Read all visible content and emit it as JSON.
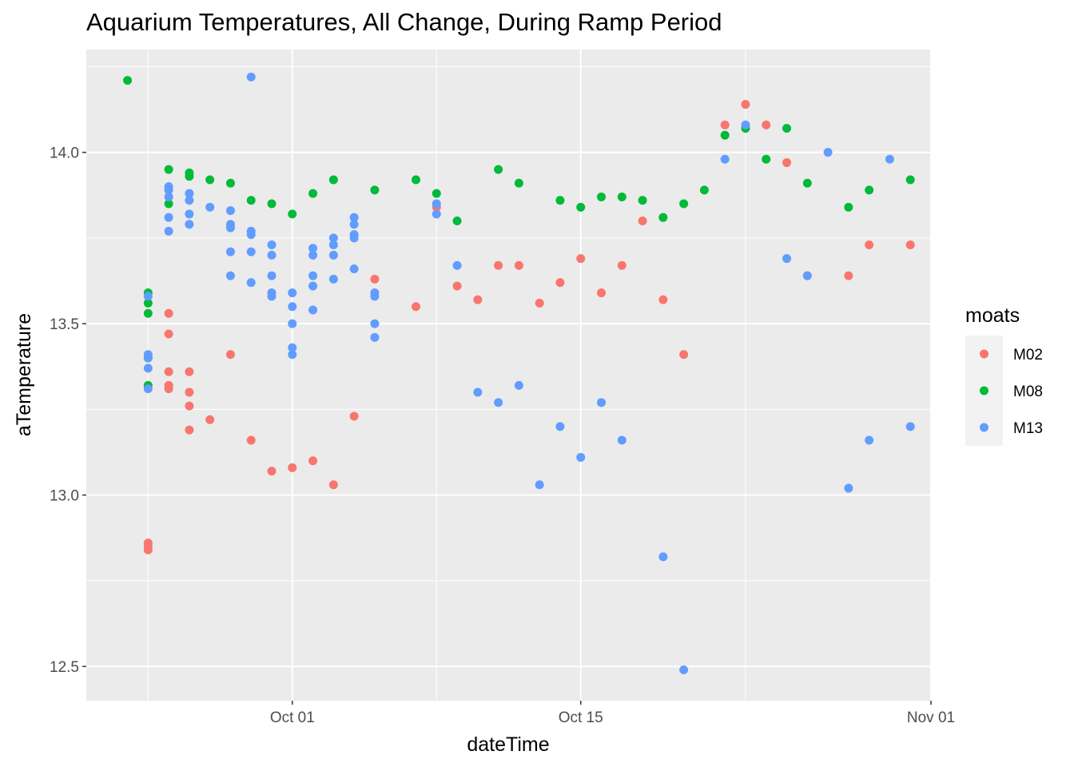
{
  "chart_data": {
    "type": "scatter",
    "title": "Aquarium Temperatures, All Change, During Ramp Period",
    "xlabel": "dateTime",
    "ylabel": "aTemperature",
    "x_axis": {
      "type": "date",
      "range": [
        "2019-09-21",
        "2019-11-01"
      ],
      "ticks": [
        {
          "date": "2019-10-01",
          "label": "Oct 01"
        },
        {
          "date": "2019-10-15",
          "label": "Oct 15"
        },
        {
          "date": "2019-11-01",
          "label": "Nov 01"
        }
      ],
      "minor_ticks": [
        "2019-09-24",
        "2019-10-08",
        "2019-10-23"
      ]
    },
    "y_axis": {
      "range": [
        12.4,
        14.3
      ],
      "ticks": [
        12.5,
        13.0,
        13.5,
        14.0
      ],
      "tick_labels": [
        "12.5",
        "13.0",
        "13.5",
        "14.0"
      ],
      "minor_ticks": [
        12.75,
        13.25,
        13.75,
        14.25
      ]
    },
    "grid": true,
    "legend": {
      "title": "moats",
      "position": "right"
    },
    "series": [
      {
        "name": "M02",
        "color": "#F8766D",
        "points": [
          [
            "2019-09-24",
            12.84
          ],
          [
            "2019-09-24",
            12.86
          ],
          [
            "2019-09-24",
            12.85
          ],
          [
            "2019-09-25",
            13.53
          ],
          [
            "2019-09-25",
            13.47
          ],
          [
            "2019-09-25",
            13.36
          ],
          [
            "2019-09-25",
            13.32
          ],
          [
            "2019-09-25",
            13.31
          ],
          [
            "2019-09-26",
            13.36
          ],
          [
            "2019-09-26",
            13.3
          ],
          [
            "2019-09-26",
            13.26
          ],
          [
            "2019-09-26",
            13.19
          ],
          [
            "2019-09-27",
            13.22
          ],
          [
            "2019-09-28",
            13.41
          ],
          [
            "2019-09-29",
            13.16
          ],
          [
            "2019-09-30",
            13.07
          ],
          [
            "2019-10-01",
            13.08
          ],
          [
            "2019-10-02",
            13.1
          ],
          [
            "2019-10-03",
            13.03
          ],
          [
            "2019-10-04",
            13.23
          ],
          [
            "2019-10-05",
            13.63
          ],
          [
            "2019-10-07",
            13.55
          ],
          [
            "2019-10-08",
            13.84
          ],
          [
            "2019-10-09",
            13.61
          ],
          [
            "2019-10-10",
            13.57
          ],
          [
            "2019-10-11",
            13.67
          ],
          [
            "2019-10-12",
            13.67
          ],
          [
            "2019-10-13",
            13.56
          ],
          [
            "2019-10-14",
            13.62
          ],
          [
            "2019-10-15",
            13.69
          ],
          [
            "2019-10-16",
            13.59
          ],
          [
            "2019-10-17",
            13.67
          ],
          [
            "2019-10-18",
            13.8
          ],
          [
            "2019-10-19",
            13.57
          ],
          [
            "2019-10-20",
            13.41
          ],
          [
            "2019-10-22",
            14.08
          ],
          [
            "2019-10-23",
            14.14
          ],
          [
            "2019-10-24",
            14.08
          ],
          [
            "2019-10-25",
            13.97
          ],
          [
            "2019-10-26",
            13.64
          ],
          [
            "2019-10-28",
            13.64
          ],
          [
            "2019-10-29",
            13.73
          ],
          [
            "2019-10-31",
            13.73
          ]
        ]
      },
      {
        "name": "M08",
        "color": "#00BA38",
        "points": [
          [
            "2019-09-23",
            14.21
          ],
          [
            "2019-09-24",
            13.59
          ],
          [
            "2019-09-24",
            13.56
          ],
          [
            "2019-09-24",
            13.53
          ],
          [
            "2019-09-24",
            13.4
          ],
          [
            "2019-09-24",
            13.32
          ],
          [
            "2019-09-25",
            13.95
          ],
          [
            "2019-09-25",
            13.85
          ],
          [
            "2019-09-26",
            13.94
          ],
          [
            "2019-09-26",
            13.93
          ],
          [
            "2019-09-27",
            13.92
          ],
          [
            "2019-09-28",
            13.91
          ],
          [
            "2019-09-29",
            13.86
          ],
          [
            "2019-09-30",
            13.85
          ],
          [
            "2019-10-01",
            13.82
          ],
          [
            "2019-10-02",
            13.88
          ],
          [
            "2019-10-03",
            13.92
          ],
          [
            "2019-10-05",
            13.89
          ],
          [
            "2019-10-07",
            13.92
          ],
          [
            "2019-10-08",
            13.88
          ],
          [
            "2019-10-09",
            13.8
          ],
          [
            "2019-10-11",
            13.95
          ],
          [
            "2019-10-12",
            13.91
          ],
          [
            "2019-10-14",
            13.86
          ],
          [
            "2019-10-15",
            13.84
          ],
          [
            "2019-10-16",
            13.87
          ],
          [
            "2019-10-17",
            13.87
          ],
          [
            "2019-10-18",
            13.86
          ],
          [
            "2019-10-19",
            13.81
          ],
          [
            "2019-10-20",
            13.85
          ],
          [
            "2019-10-21",
            13.89
          ],
          [
            "2019-10-22",
            14.05
          ],
          [
            "2019-10-23",
            14.07
          ],
          [
            "2019-10-24",
            13.98
          ],
          [
            "2019-10-25",
            14.07
          ],
          [
            "2019-10-26",
            13.91
          ],
          [
            "2019-10-28",
            13.84
          ],
          [
            "2019-10-29",
            13.89
          ],
          [
            "2019-10-31",
            13.92
          ]
        ]
      },
      {
        "name": "M13",
        "color": "#619CFF",
        "points": [
          [
            "2019-09-24",
            13.58
          ],
          [
            "2019-09-24",
            13.41
          ],
          [
            "2019-09-24",
            13.4
          ],
          [
            "2019-09-24",
            13.37
          ],
          [
            "2019-09-24",
            13.31
          ],
          [
            "2019-09-25",
            13.9
          ],
          [
            "2019-09-25",
            13.89
          ],
          [
            "2019-09-25",
            13.87
          ],
          [
            "2019-09-25",
            13.81
          ],
          [
            "2019-09-25",
            13.77
          ],
          [
            "2019-09-26",
            13.88
          ],
          [
            "2019-09-26",
            13.86
          ],
          [
            "2019-09-26",
            13.82
          ],
          [
            "2019-09-26",
            13.79
          ],
          [
            "2019-09-27",
            13.84
          ],
          [
            "2019-09-28",
            13.83
          ],
          [
            "2019-09-28",
            13.79
          ],
          [
            "2019-09-28",
            13.78
          ],
          [
            "2019-09-28",
            13.71
          ],
          [
            "2019-09-28",
            13.64
          ],
          [
            "2019-09-29",
            13.77
          ],
          [
            "2019-09-29",
            13.76
          ],
          [
            "2019-09-29",
            13.71
          ],
          [
            "2019-09-29",
            13.62
          ],
          [
            "2019-09-30",
            13.73
          ],
          [
            "2019-09-30",
            13.7
          ],
          [
            "2019-09-30",
            13.64
          ],
          [
            "2019-09-30",
            13.59
          ],
          [
            "2019-09-30",
            13.58
          ],
          [
            "2019-09-29",
            14.22
          ],
          [
            "2019-10-01",
            13.59
          ],
          [
            "2019-10-01",
            13.55
          ],
          [
            "2019-10-01",
            13.5
          ],
          [
            "2019-10-01",
            13.43
          ],
          [
            "2019-10-01",
            13.41
          ],
          [
            "2019-10-02",
            13.72
          ],
          [
            "2019-10-02",
            13.7
          ],
          [
            "2019-10-02",
            13.64
          ],
          [
            "2019-10-02",
            13.61
          ],
          [
            "2019-10-02",
            13.54
          ],
          [
            "2019-10-03",
            13.75
          ],
          [
            "2019-10-03",
            13.73
          ],
          [
            "2019-10-03",
            13.7
          ],
          [
            "2019-10-03",
            13.63
          ],
          [
            "2019-10-04",
            13.81
          ],
          [
            "2019-10-04",
            13.79
          ],
          [
            "2019-10-04",
            13.76
          ],
          [
            "2019-10-04",
            13.75
          ],
          [
            "2019-10-04",
            13.66
          ],
          [
            "2019-10-05",
            13.59
          ],
          [
            "2019-10-05",
            13.58
          ],
          [
            "2019-10-05",
            13.5
          ],
          [
            "2019-10-05",
            13.46
          ],
          [
            "2019-10-08",
            13.82
          ],
          [
            "2019-10-08",
            13.85
          ],
          [
            "2019-10-09",
            13.67
          ],
          [
            "2019-10-10",
            13.3
          ],
          [
            "2019-10-11",
            13.27
          ],
          [
            "2019-10-12",
            13.32
          ],
          [
            "2019-10-13",
            13.03
          ],
          [
            "2019-10-14",
            13.2
          ],
          [
            "2019-10-15",
            13.11
          ],
          [
            "2019-10-16",
            13.27
          ],
          [
            "2019-10-17",
            13.16
          ],
          [
            "2019-10-19",
            12.82
          ],
          [
            "2019-10-20",
            12.49
          ],
          [
            "2019-10-22",
            13.98
          ],
          [
            "2019-10-23",
            14.08
          ],
          [
            "2019-10-25",
            13.69
          ],
          [
            "2019-10-26",
            13.64
          ],
          [
            "2019-10-27",
            14.0
          ],
          [
            "2019-10-28",
            13.02
          ],
          [
            "2019-10-29",
            13.16
          ],
          [
            "2019-10-30",
            13.98
          ],
          [
            "2019-10-31",
            13.2
          ]
        ]
      }
    ]
  }
}
